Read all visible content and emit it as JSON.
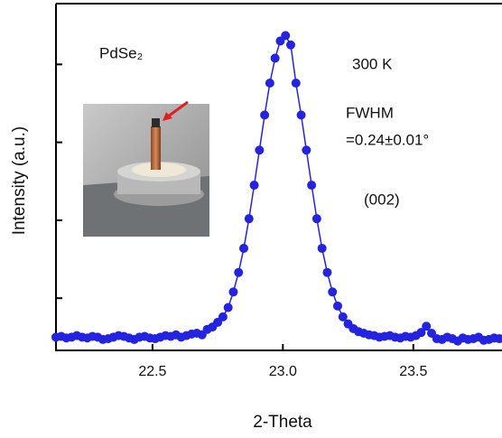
{
  "chart_data": {
    "type": "scatter-line",
    "x_label": "2-Theta",
    "y_label": "Intensity (a.u.)",
    "annotations": [
      "PdSe₂",
      "300 K",
      "FWHM",
      "=0.24±0.01°",
      "(002)"
    ],
    "xlim": [
      22.13,
      23.84
    ],
    "ylim": [
      0.33,
      4.78
    ],
    "xticks": [
      22.5,
      {
        "value": 23,
        "label": "23.0"
      },
      23.5
    ],
    "yticks": [
      1,
      2,
      3,
      4
    ],
    "series": [
      {
        "color": "#2323e0",
        "x": [
          22.13,
          22.15,
          22.17,
          22.19,
          22.21,
          22.23,
          22.25,
          22.27,
          22.29,
          22.31,
          22.33,
          22.35,
          22.37,
          22.39,
          22.41,
          22.43,
          22.45,
          22.47,
          22.49,
          22.51,
          22.53,
          22.55,
          22.57,
          22.59,
          22.61,
          22.63,
          22.65,
          22.67,
          22.69,
          22.71,
          22.73,
          22.75,
          22.77,
          22.79,
          22.81,
          22.83,
          22.85,
          22.87,
          22.89,
          22.91,
          22.93,
          22.95,
          22.97,
          22.99,
          23.01,
          23.03,
          23.05,
          23.07,
          23.09,
          23.11,
          23.13,
          23.15,
          23.17,
          23.19,
          23.21,
          23.23,
          23.25,
          23.27,
          23.29,
          23.31,
          23.33,
          23.35,
          23.37,
          23.39,
          23.41,
          23.43,
          23.45,
          23.47,
          23.49,
          23.51,
          23.53,
          23.55,
          23.57,
          23.59,
          23.61,
          23.63,
          23.65,
          23.67,
          23.69,
          23.71,
          23.73,
          23.75,
          23.77,
          23.79,
          23.81,
          23.83
        ],
        "values": [
          0.5,
          0.51,
          0.49,
          0.5,
          0.52,
          0.5,
          0.49,
          0.51,
          0.5,
          0.47,
          0.48,
          0.5,
          0.52,
          0.51,
          0.49,
          0.47,
          0.5,
          0.51,
          0.49,
          0.48,
          0.5,
          0.52,
          0.51,
          0.53,
          0.5,
          0.52,
          0.54,
          0.55,
          0.53,
          0.6,
          0.63,
          0.69,
          0.76,
          0.88,
          1.08,
          1.33,
          1.64,
          2.02,
          2.45,
          2.9,
          3.35,
          3.76,
          4.08,
          4.3,
          4.37,
          4.25,
          3.76,
          3.35,
          2.9,
          2.45,
          2.02,
          1.64,
          1.33,
          1.08,
          0.9,
          0.76,
          0.67,
          0.61,
          0.57,
          0.55,
          0.53,
          0.52,
          0.5,
          0.51,
          0.52,
          0.5,
          0.49,
          0.51,
          0.5,
          0.52,
          0.56,
          0.64,
          0.55,
          0.48,
          0.47,
          0.5,
          0.48,
          0.45,
          0.49,
          0.47,
          0.48,
          0.5,
          0.46,
          0.47,
          0.49,
          0.48
        ]
      }
    ]
  }
}
